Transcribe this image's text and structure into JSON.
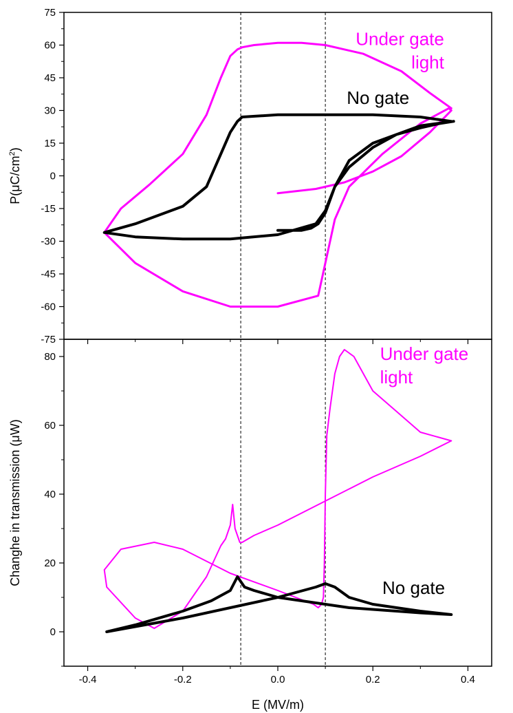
{
  "colors": {
    "no_gate": "#000000",
    "under_gate_light": "#ff00ff",
    "axis": "#000000",
    "guide": "#000000"
  },
  "chart_data": [
    {
      "type": "line",
      "panel": "top",
      "xlabel": "E (MV/m)",
      "ylabel_main": "P(μC/cm",
      "ylabel_sup": "2",
      "ylabel_tail": ")",
      "xlim": [
        -0.45,
        0.45
      ],
      "ylim": [
        -75,
        75
      ],
      "yticks": [
        -75,
        -60,
        -45,
        -30,
        -15,
        0,
        15,
        30,
        45,
        60,
        75
      ],
      "ytick_labels": [
        "-75",
        "-60",
        "-45",
        "-30",
        "-15",
        "0",
        "15",
        "30",
        "45",
        "60",
        "75"
      ],
      "xticks": [
        -0.4,
        -0.2,
        0.0,
        0.2,
        0.4
      ],
      "dashed_guides_x": [
        -0.078,
        0.1
      ],
      "annotations": [
        {
          "key": "under_gate_light",
          "lines": [
            "Under gate",
            "light"
          ],
          "x": 0.35,
          "y": 60,
          "anchor": "end",
          "color": "#ff00ff"
        },
        {
          "key": "no_gate",
          "lines": [
            "No gate"
          ],
          "x": 0.145,
          "y": 33,
          "anchor": "start",
          "color": "#000000"
        }
      ],
      "series": [
        {
          "key": "under_gate_light",
          "color": "#ff00ff",
          "stroke": 3,
          "x": [
            0.0,
            0.08,
            0.14,
            0.2,
            0.26,
            0.32,
            0.365,
            0.36,
            0.3,
            0.22,
            0.15,
            0.12,
            0.1,
            0.085,
            0.0,
            -0.1,
            -0.2,
            -0.3,
            -0.365,
            -0.33,
            -0.27,
            -0.2,
            -0.15,
            -0.12,
            -0.1,
            -0.085,
            -0.075,
            -0.05,
            0.0,
            0.05,
            0.1,
            0.18,
            0.26,
            0.32,
            0.365
          ],
          "y": [
            -8,
            -6,
            -3,
            2,
            9,
            20,
            30,
            31,
            24,
            10,
            -5,
            -20,
            -40,
            -55,
            -60,
            -60,
            -53,
            -40,
            -26,
            -15,
            -4,
            10,
            28,
            45,
            55,
            58,
            59,
            60,
            61,
            61,
            60,
            56,
            48,
            38,
            31
          ]
        },
        {
          "key": "no_gate",
          "color": "#000000",
          "stroke": 4,
          "x": [
            0.0,
            0.05,
            0.07,
            0.085,
            0.1,
            0.12,
            0.15,
            0.2,
            0.25,
            0.3,
            0.34,
            0.37,
            0.3,
            0.2,
            0.15,
            0.12,
            0.1,
            0.08,
            0.0,
            -0.1,
            -0.2,
            -0.3,
            -0.365,
            -0.3,
            -0.2,
            -0.15,
            -0.12,
            -0.1,
            -0.085,
            -0.075,
            0.0,
            0.1,
            0.2,
            0.3,
            0.365
          ],
          "y": [
            -25,
            -25,
            -24,
            -22,
            -17,
            -5,
            4,
            13,
            19,
            22,
            24,
            25,
            23,
            15,
            7,
            -5,
            -16,
            -22,
            -27,
            -29,
            -29,
            -28,
            -26,
            -22,
            -14,
            -5,
            10,
            20,
            25,
            27,
            28,
            28,
            28,
            27,
            25
          ]
        }
      ]
    },
    {
      "type": "line",
      "panel": "bottom",
      "xlabel": "E (MV/m)",
      "ylabel": "Changhe in transmission (μW)",
      "xlim": [
        -0.45,
        0.45
      ],
      "ylim": [
        -10,
        85
      ],
      "yticks": [
        0,
        20,
        40,
        60,
        80
      ],
      "ytick_labels": [
        "0",
        "20",
        "40",
        "60",
        "80"
      ],
      "xticks": [
        -0.4,
        -0.2,
        0.0,
        0.2,
        0.4
      ],
      "xtick_labels": [
        "-0.4",
        "-0.2",
        "0.0",
        "0.2",
        "0.4"
      ],
      "dashed_guides_x": [
        -0.078,
        0.1
      ],
      "annotations": [
        {
          "key": "under_gate_light",
          "lines": [
            "Under gate",
            "light"
          ],
          "x": 0.215,
          "y": 79,
          "anchor": "start",
          "color": "#ff00ff"
        },
        {
          "key": "no_gate",
          "lines": [
            "No gate"
          ],
          "x": 0.22,
          "y": 11,
          "anchor": "start",
          "color": "#000000"
        }
      ],
      "series": [
        {
          "key": "under_gate_light",
          "color": "#ff00ff",
          "stroke": 2,
          "x": [
            0.365,
            0.3,
            0.25,
            0.2,
            0.18,
            0.16,
            0.14,
            0.13,
            0.12,
            0.11,
            0.103,
            0.1,
            0.098,
            0.096,
            0.092,
            0.085,
            0.075,
            0.0,
            -0.1,
            -0.2,
            -0.26,
            -0.33,
            -0.365,
            -0.36,
            -0.3,
            -0.26,
            -0.2,
            -0.15,
            -0.12,
            -0.11,
            -0.1,
            -0.095,
            -0.09,
            -0.08,
            -0.075,
            -0.05,
            0.0,
            0.1,
            0.2,
            0.3,
            0.365
          ],
          "y": [
            55.5,
            58,
            64,
            70,
            75,
            80,
            82,
            80,
            75,
            65,
            57,
            40,
            20,
            10,
            8,
            7,
            8,
            12,
            17,
            24,
            26,
            24,
            18,
            13,
            4,
            1,
            6,
            16,
            25,
            27,
            31,
            37,
            30,
            26,
            26,
            28,
            31,
            38,
            45,
            51,
            55.5
          ]
        },
        {
          "key": "no_gate",
          "color": "#000000",
          "stroke": 4,
          "x": [
            -0.36,
            -0.3,
            -0.2,
            -0.14,
            -0.1,
            -0.085,
            -0.07,
            -0.05,
            0.0,
            0.05,
            0.1,
            0.15,
            0.2,
            0.3,
            0.365,
            0.3,
            0.2,
            0.15,
            0.12,
            0.1,
            0.08,
            0.0,
            -0.1,
            -0.2,
            -0.3,
            -0.36
          ],
          "y": [
            0,
            2,
            6,
            9,
            12,
            16,
            13,
            12,
            10,
            9,
            8,
            7,
            6.5,
            5.5,
            5,
            6,
            8,
            10,
            13,
            14,
            13,
            10,
            7,
            4,
            1.5,
            0
          ]
        }
      ]
    }
  ]
}
